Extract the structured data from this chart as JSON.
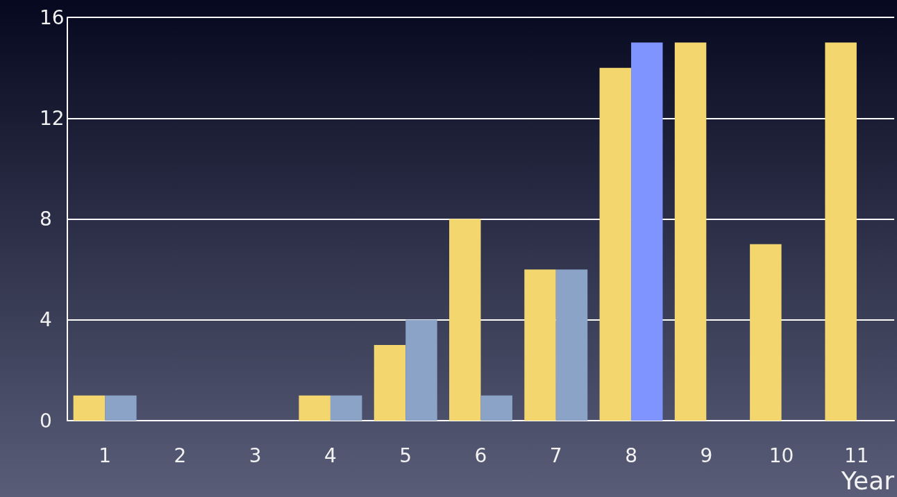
{
  "chart_data": {
    "type": "bar",
    "xlabel": "Year",
    "categories": [
      "1",
      "2",
      "3",
      "4",
      "5",
      "6",
      "7",
      "8",
      "9",
      "10",
      "11"
    ],
    "series": [
      {
        "color": "#f4d66f",
        "values": [
          1,
          0,
          0,
          1,
          3,
          8,
          6,
          14,
          15,
          7,
          15
        ]
      },
      {
        "color": "#8ba3c6",
        "colors": [
          "#8ba3c6",
          "#8ba3c6",
          "#8ba3c6",
          "#8ba3c6",
          "#8ba3c6",
          "#8ba3c6",
          "#8ba3c6",
          "#8094ff",
          "#8ba3c6",
          "#8ba3c6",
          "#8ba3c6"
        ],
        "values": [
          1,
          0,
          0,
          1,
          4,
          1,
          6,
          15,
          0,
          0,
          0
        ]
      }
    ],
    "ylim": [
      0,
      16
    ],
    "yticks": [
      0,
      4,
      8,
      12,
      16
    ],
    "grid": "y"
  }
}
